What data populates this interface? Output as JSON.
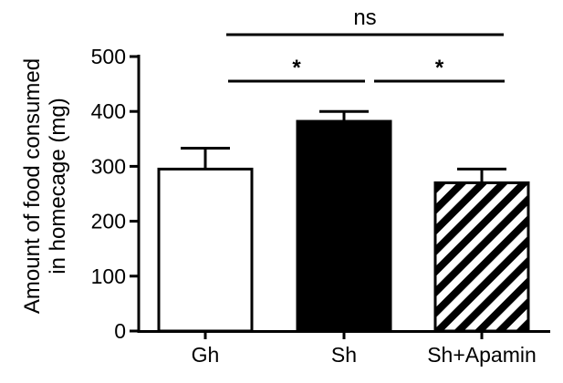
{
  "chart_data": {
    "type": "bar",
    "title": "",
    "xlabel": "",
    "ylabel_lines": [
      "Amount of food consumed",
      "in homecage (mg)"
    ],
    "ylim": [
      0,
      500
    ],
    "yticks": [
      0,
      100,
      200,
      300,
      400,
      500
    ],
    "ytick_labels": [
      "0",
      "100",
      "200",
      "300",
      "400",
      "500"
    ],
    "categories": [
      "Gh",
      "Sh",
      "Sh+Apamin"
    ],
    "values": [
      295,
      382,
      270
    ],
    "errors": [
      38,
      18,
      25
    ],
    "bar_styles": [
      {
        "fill": "white",
        "color": "#ffffff"
      },
      {
        "fill": "solid",
        "color": "#000000"
      },
      {
        "fill": "diagonal-stripes",
        "color": "#000000"
      }
    ],
    "significance": [
      {
        "from": 0,
        "to": 2,
        "label": "ns"
      },
      {
        "from": 0,
        "to": 1,
        "label": "*"
      },
      {
        "from": 1,
        "to": 2,
        "label": "*"
      }
    ],
    "grid": false,
    "legend": "none"
  }
}
